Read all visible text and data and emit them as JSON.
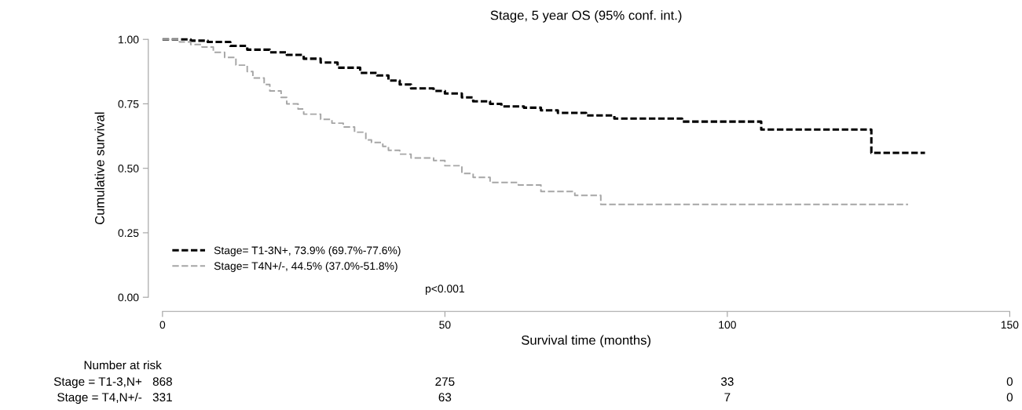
{
  "chart_data": {
    "type": "step",
    "title": "Stage, 5 year OS (95% conf. int.)",
    "xlabel": "Survival time (months)",
    "ylabel": "Cumulative survival",
    "xlim": [
      0,
      150
    ],
    "xticks": [
      0,
      50,
      100,
      150
    ],
    "ylim": [
      0,
      1
    ],
    "yticks": [
      {
        "value": 0,
        "label": "0.00"
      },
      {
        "value": 0.25,
        "label": "0.25"
      },
      {
        "value": 0.5,
        "label": "0.50"
      },
      {
        "value": 0.75,
        "label": "0.75"
      },
      {
        "value": 1,
        "label": "1.00"
      }
    ],
    "grid": false,
    "legend": "bottom left",
    "line_style": "dashed",
    "marker": "none",
    "series": [
      {
        "name": "Stage= T1-3N+, 73.9% (69.7%-77.6%)",
        "color": "#000000",
        "x": [
          0,
          5,
          8,
          12,
          15,
          19,
          22,
          25,
          28,
          31,
          35,
          38,
          40,
          42,
          44,
          48,
          50,
          53,
          55,
          58,
          60,
          64,
          67,
          70,
          75,
          80,
          92,
          106,
          125.5,
          135
        ],
        "values": [
          1.0,
          0.995,
          0.99,
          0.975,
          0.96,
          0.95,
          0.94,
          0.925,
          0.91,
          0.89,
          0.87,
          0.86,
          0.84,
          0.825,
          0.81,
          0.8,
          0.79,
          0.775,
          0.76,
          0.75,
          0.74,
          0.735,
          0.725,
          0.715,
          0.705,
          0.693,
          0.681,
          0.65,
          0.56,
          0.56
        ]
      },
      {
        "name": "Stage= T4N+/-, 44.5% (37.0%-51.8%)",
        "color": "#a6a6a6",
        "x": [
          0,
          3,
          5,
          7,
          9,
          11,
          13,
          15,
          16,
          18,
          19,
          21,
          22,
          24,
          25,
          28,
          30,
          32,
          34,
          36,
          37,
          39,
          40,
          42,
          44,
          48,
          50,
          53,
          55,
          58,
          63,
          67,
          73,
          77.6,
          132
        ],
        "values": [
          1.0,
          0.99,
          0.98,
          0.97,
          0.95,
          0.93,
          0.9,
          0.875,
          0.85,
          0.825,
          0.8,
          0.775,
          0.75,
          0.73,
          0.71,
          0.69,
          0.675,
          0.66,
          0.64,
          0.61,
          0.6,
          0.585,
          0.57,
          0.555,
          0.54,
          0.53,
          0.51,
          0.48,
          0.465,
          0.445,
          0.435,
          0.41,
          0.395,
          0.36,
          0.36
        ]
      }
    ],
    "annotations": [
      "p<0.001",
      "Number at risk",
      "Stage = T1-3,N+",
      "868",
      "275",
      "33",
      "0",
      "Stage = T4,N+/-",
      "331",
      "63",
      "7",
      "0"
    ]
  }
}
